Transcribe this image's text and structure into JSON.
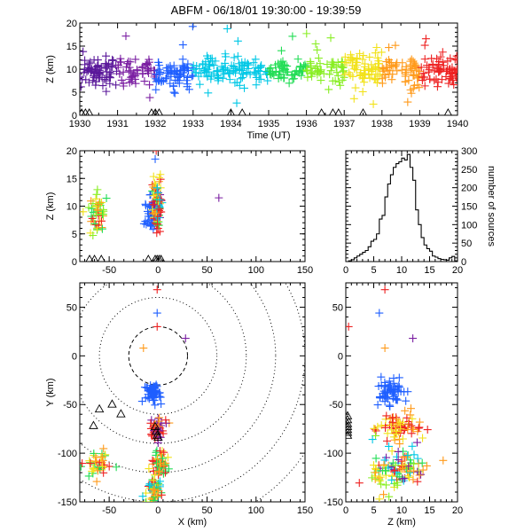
{
  "title": "ABFM - 06/18/01 19:30:00 - 19:39:59",
  "colors": {
    "dark_purple": "#5a189a",
    "purple": "#7b1fa2",
    "blue": "#1f5fff",
    "cyan": "#00c8e6",
    "green": "#22dd55",
    "lime": "#88ee22",
    "yellow": "#f2e21a",
    "orange": "#ff9a1a",
    "red": "#ee2222",
    "black": "#000000"
  },
  "chart_data": [
    {
      "id": "time-height",
      "type": "scatter",
      "title": "",
      "xlabel": "Time (UT)",
      "ylabel": "Z (km)",
      "x_tick_labels": [
        "1930",
        "1931",
        "1932",
        "1933",
        "1934",
        "1935",
        "1936",
        "1937",
        "1938",
        "1939",
        "1940"
      ],
      "y_tick_labels": [
        "0",
        "5",
        "10",
        "15",
        "20"
      ],
      "xlim": [
        0,
        10
      ],
      "ylim": [
        0,
        20
      ],
      "units_x": "minutes after 19:30",
      "series_description": "Lightning VHF sources colored by time, altitude mostly 5-15 km throughout the 10-minute window",
      "bands": [
        {
          "t0": 0.0,
          "t1": 1.0,
          "z_center": 9.5,
          "z_spread": 3.0,
          "color": "dark_purple",
          "count": 70
        },
        {
          "t0": 1.0,
          "t1": 2.0,
          "z_center": 9.5,
          "z_spread": 2.5,
          "color": "purple",
          "count": 55
        },
        {
          "t0": 2.0,
          "t1": 3.0,
          "z_center": 9.0,
          "z_spread": 3.0,
          "color": "blue",
          "count": 75
        },
        {
          "t0": 3.0,
          "t1": 4.0,
          "z_center": 9.5,
          "z_spread": 2.5,
          "color": "cyan",
          "count": 60
        },
        {
          "t0": 4.0,
          "t1": 5.0,
          "z_center": 9.5,
          "z_spread": 2.5,
          "color": "cyan",
          "count": 55
        },
        {
          "t0": 5.0,
          "t1": 6.0,
          "z_center": 9.5,
          "z_spread": 2.5,
          "color": "green",
          "count": 55
        },
        {
          "t0": 6.0,
          "t1": 7.0,
          "z_center": 9.5,
          "z_spread": 2.5,
          "color": "lime",
          "count": 55
        },
        {
          "t0": 7.0,
          "t1": 8.0,
          "z_center": 10.0,
          "z_spread": 3.5,
          "color": "yellow",
          "count": 70
        },
        {
          "t0": 8.0,
          "t1": 9.0,
          "z_center": 9.5,
          "z_spread": 3.0,
          "color": "orange",
          "count": 65
        },
        {
          "t0": 9.0,
          "t1": 10.0,
          "z_center": 9.5,
          "z_spread": 3.0,
          "color": "red",
          "count": 70
        }
      ],
      "ground_markers_t": [
        0.05,
        0.15,
        0.25,
        1.9,
        2.0,
        2.1,
        4.0,
        4.3,
        6.4,
        6.7,
        6.85,
        7.5,
        9.75
      ]
    },
    {
      "id": "x-height",
      "type": "scatter",
      "xlabel": "",
      "ylabel": "Z (km)",
      "x_tick_labels": [
        "-50",
        "0",
        "50",
        "100",
        "150"
      ],
      "y_tick_labels": [
        "0",
        "5",
        "10",
        "15",
        "20"
      ],
      "xlim": [
        -80,
        150
      ],
      "ylim": [
        0,
        20
      ],
      "clusters": [
        {
          "x_center": -62,
          "x_spread": 5,
          "z_center": 8.5,
          "z_spread": 3.5,
          "colors": [
            "yellow",
            "orange",
            "red",
            "green",
            "lime"
          ],
          "count": 45
        },
        {
          "x_center": -6,
          "x_spread": 2.5,
          "z_center": 8.5,
          "z_spread": 2.5,
          "colors": [
            "blue"
          ],
          "count": 45
        },
        {
          "x_center": -1,
          "x_spread": 2.5,
          "z_center": 10.0,
          "z_spread": 4.0,
          "colors": [
            "red",
            "red",
            "orange",
            "green",
            "yellow",
            "cyan",
            "purple"
          ],
          "count": 90
        }
      ],
      "outliers": [
        {
          "x": 62,
          "z": 11.5,
          "color": "purple"
        },
        {
          "x": -2,
          "z": 20.0,
          "color": "red"
        },
        {
          "x": -3,
          "z": 18.5,
          "color": "blue"
        }
      ],
      "ground_markers_x": [
        -70,
        -65,
        -58,
        -10,
        -3,
        -1,
        1,
        3
      ]
    },
    {
      "id": "height-histogram",
      "type": "bar",
      "xlabel": "",
      "ylabel": "number of sources",
      "x_tick_labels": [
        "0",
        "5",
        "10",
        "15",
        "20"
      ],
      "y_tick_labels": [
        "0",
        "50",
        "100",
        "150",
        "200",
        "250",
        "300"
      ],
      "xlim": [
        0,
        20
      ],
      "ylim": [
        0,
        300
      ],
      "bin_edges_start": 0,
      "bin_width": 0.5,
      "values": [
        0,
        2,
        5,
        10,
        15,
        20,
        25,
        30,
        40,
        55,
        60,
        75,
        115,
        125,
        175,
        210,
        235,
        255,
        265,
        270,
        280,
        275,
        290,
        255,
        220,
        140,
        100,
        65,
        45,
        35,
        28,
        15,
        12,
        8,
        6,
        5,
        4,
        10,
        14,
        2
      ]
    },
    {
      "id": "plan-view",
      "type": "scatter",
      "xlabel": "X (km)",
      "ylabel": "Y (km)",
      "x_tick_labels": [
        "-50",
        "0",
        "50",
        "100",
        "150"
      ],
      "y_tick_labels": [
        "-150",
        "-100",
        "-50",
        "0",
        "50"
      ],
      "xlim": [
        -80,
        150
      ],
      "ylim": [
        -150,
        75
      ],
      "range_rings_km": [
        30,
        60,
        90,
        120,
        150,
        180
      ],
      "clusters": [
        {
          "x_center": -5,
          "x_spread": 3.5,
          "y_center": -38,
          "y_spread": 8,
          "colors": [
            "blue"
          ],
          "count": 55
        },
        {
          "x_center": -1,
          "x_spread": 3.5,
          "y_center": -75,
          "y_spread": 8,
          "colors": [
            "red",
            "red",
            "orange",
            "purple"
          ],
          "count": 55
        },
        {
          "x_center": 1,
          "x_spread": 4,
          "y_center": -110,
          "y_spread": 12,
          "colors": [
            "red",
            "orange",
            "green",
            "yellow"
          ],
          "count": 50
        },
        {
          "x_center": -4,
          "x_spread": 4,
          "y_center": -138,
          "y_spread": 10,
          "colors": [
            "red",
            "green",
            "yellow",
            "cyan",
            "orange"
          ],
          "count": 55
        },
        {
          "x_center": -62,
          "x_spread": 7,
          "y_center": -112,
          "y_spread": 12,
          "colors": [
            "red",
            "orange",
            "yellow",
            "green"
          ],
          "count": 40
        }
      ],
      "outliers": [
        {
          "x": -1,
          "y": 68,
          "color": "red"
        },
        {
          "x": -1,
          "y": 44,
          "color": "blue"
        },
        {
          "x": -1,
          "y": 30,
          "color": "red"
        },
        {
          "x": -15,
          "y": 8,
          "color": "orange"
        },
        {
          "x": 28,
          "y": 18,
          "color": "purple"
        }
      ],
      "ground_markers": [
        {
          "x": -47,
          "y": -50
        },
        {
          "x": -60,
          "y": -55
        },
        {
          "x": -38,
          "y": -60
        },
        {
          "x": -66,
          "y": -72
        },
        {
          "x": -3,
          "y": -73
        },
        {
          "x": -2,
          "y": -78
        },
        {
          "x": -1,
          "y": -82
        },
        {
          "x": 0,
          "y": -84
        }
      ]
    },
    {
      "id": "height-y",
      "type": "scatter",
      "xlabel": "Z (km)",
      "ylabel": "",
      "x_tick_labels": [
        "0",
        "5",
        "10",
        "15",
        "20"
      ],
      "y_tick_labels": [
        "-150",
        "-100",
        "-50",
        "0",
        "50"
      ],
      "xlim": [
        0,
        20
      ],
      "ylim": [
        -150,
        75
      ],
      "clusters": [
        {
          "z_center": 8,
          "z_spread": 2.5,
          "y_center": -38,
          "y_spread": 10,
          "colors": [
            "blue"
          ],
          "count": 55
        },
        {
          "z_center": 10,
          "z_spread": 3.5,
          "y_center": -75,
          "y_spread": 12,
          "colors": [
            "red",
            "red",
            "orange",
            "yellow"
          ],
          "count": 70
        },
        {
          "z_center": 9,
          "z_spread": 4.5,
          "y_center": -115,
          "y_spread": 22,
          "colors": [
            "red",
            "orange",
            "green",
            "yellow",
            "cyan",
            "purple",
            "lime"
          ],
          "count": 110
        }
      ],
      "outliers": [
        {
          "z": 7,
          "y": 68,
          "color": "red"
        },
        {
          "z": 12,
          "y": 18,
          "color": "purple"
        },
        {
          "z": 6,
          "y": 44,
          "color": "blue"
        },
        {
          "z": 7,
          "y": 8,
          "color": "orange"
        },
        {
          "z": 0.5,
          "y": 30,
          "color": "red"
        }
      ],
      "ground_markers_y": [
        -62,
        -66,
        -70,
        -73,
        -76,
        -79,
        -82
      ]
    }
  ]
}
